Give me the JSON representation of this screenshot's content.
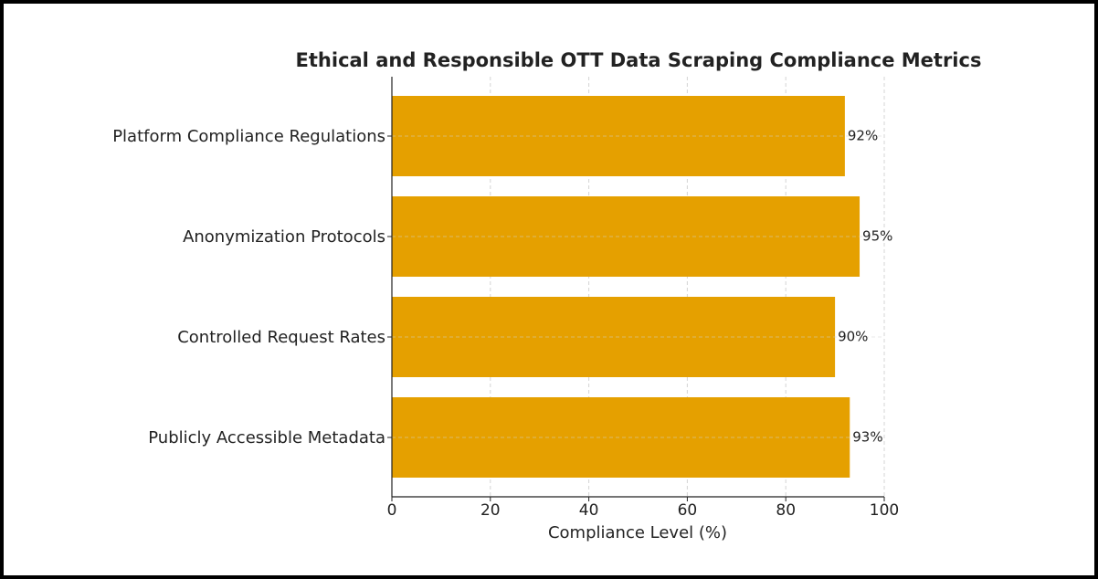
{
  "chart_data": {
    "type": "barh",
    "title": "Ethical and Responsible OTT Data Scraping Compliance Metrics",
    "xlabel": "Compliance Level (%)",
    "categories": [
      "Platform Compliance Regulations",
      "Anonymization Protocols",
      "Controlled Request Rates",
      "Publicly Accessible Metadata"
    ],
    "values": [
      92,
      95,
      90,
      93
    ],
    "value_labels": [
      "92%",
      "95%",
      "90%",
      "93%"
    ],
    "color": "#e5a000",
    "xlim": [
      0,
      100
    ],
    "xticks": [
      0,
      20,
      40,
      60,
      80,
      100
    ],
    "grid": true
  }
}
